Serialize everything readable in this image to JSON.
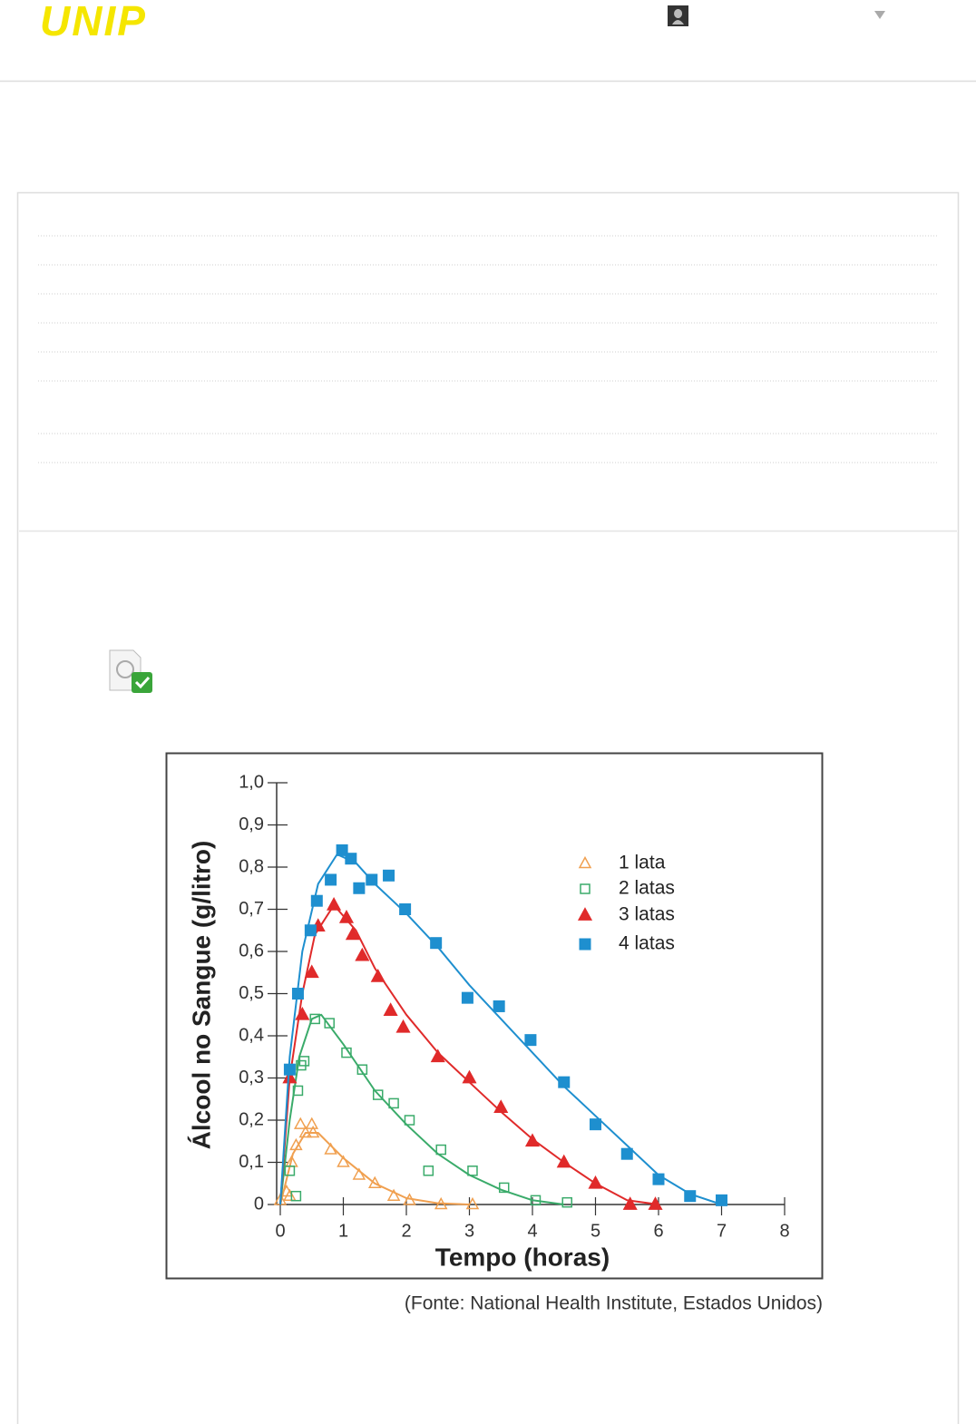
{
  "header": {
    "logo": "UNIP"
  },
  "chart_data": {
    "type": "scatter",
    "x_label": "Tempo (horas)",
    "y_label": "Álcool no Sangue (g/litro)",
    "source": "(Fonte: National Health Institute, Estados Unidos)",
    "xlim": [
      0,
      8
    ],
    "ylim": [
      0,
      1.0
    ],
    "xticks": [
      0,
      1,
      2,
      3,
      4,
      5,
      6,
      7,
      8
    ],
    "yticks": [
      0,
      {
        "value": 0.1,
        "label": "0,1"
      },
      {
        "value": 0.2,
        "label": "0,2"
      },
      {
        "value": 0.3,
        "label": "0,3"
      },
      {
        "value": 0.4,
        "label": "0,4"
      },
      {
        "value": 0.5,
        "label": "0,5"
      },
      {
        "value": 0.6,
        "label": "0,6"
      },
      {
        "value": 0.7,
        "label": "0,7"
      },
      {
        "value": 0.8,
        "label": "0,8"
      },
      {
        "value": 0.9,
        "label": "0,9"
      },
      {
        "value": 1.0,
        "label": "1,0"
      }
    ],
    "legend": "upper right",
    "series": [
      {
        "name": "1 lata",
        "color": "#f0a050",
        "marker": "triangle",
        "filled": false,
        "x": [
          0.0,
          0.1,
          0.15,
          0.18,
          0.25,
          0.32,
          0.4,
          0.5,
          0.52,
          0.8,
          1.0,
          1.25,
          1.5,
          1.8,
          2.05,
          2.55,
          3.05
        ],
        "values": [
          0.01,
          0.03,
          0.02,
          0.1,
          0.14,
          0.19,
          0.17,
          0.19,
          0.17,
          0.13,
          0.1,
          0.07,
          0.05,
          0.02,
          0.01,
          0.0,
          0.0
        ],
        "fit_x": [
          0,
          0.2,
          0.4,
          0.6,
          1.0,
          1.5,
          2.0,
          2.5,
          3.0
        ],
        "fit_values": [
          0,
          0.12,
          0.17,
          0.17,
          0.11,
          0.05,
          0.015,
          0.003,
          0
        ]
      },
      {
        "name": "2 latas",
        "color": "#3aab6a",
        "marker": "square",
        "filled": false,
        "x": [
          0.15,
          0.25,
          0.28,
          0.33,
          0.38,
          0.55,
          0.78,
          1.05,
          1.3,
          1.55,
          1.8,
          2.05,
          2.35,
          2.55,
          3.05,
          3.55,
          4.05,
          4.55
        ],
        "values": [
          0.08,
          0.02,
          0.27,
          0.33,
          0.34,
          0.44,
          0.43,
          0.36,
          0.32,
          0.26,
          0.24,
          0.2,
          0.08,
          0.13,
          0.08,
          0.04,
          0.01,
          0.005
        ],
        "fit_x": [
          0,
          0.15,
          0.3,
          0.5,
          0.65,
          1.0,
          1.5,
          2.0,
          2.5,
          3.0,
          3.5,
          4.0,
          4.5
        ],
        "fit_values": [
          0,
          0.2,
          0.35,
          0.44,
          0.45,
          0.38,
          0.27,
          0.19,
          0.12,
          0.07,
          0.035,
          0.01,
          0
        ]
      },
      {
        "name": "3 latas",
        "color": "#e02a2a",
        "marker": "triangle",
        "filled": true,
        "x": [
          0.15,
          0.35,
          0.5,
          0.6,
          0.85,
          1.05,
          1.15,
          1.3,
          1.55,
          1.75,
          1.95,
          2.5,
          3.0,
          3.5,
          4.0,
          4.5,
          5.0,
          5.55,
          5.95
        ],
        "values": [
          0.3,
          0.45,
          0.55,
          0.66,
          0.71,
          0.68,
          0.64,
          0.59,
          0.54,
          0.46,
          0.42,
          0.35,
          0.3,
          0.23,
          0.15,
          0.1,
          0.05,
          0.0,
          0.0
        ],
        "fit_x": [
          0,
          0.15,
          0.35,
          0.55,
          0.85,
          1.2,
          1.5,
          2.0,
          2.5,
          3.0,
          3.5,
          4.0,
          4.5,
          5.0,
          5.5,
          6.0
        ],
        "fit_values": [
          0,
          0.3,
          0.5,
          0.64,
          0.71,
          0.65,
          0.56,
          0.45,
          0.36,
          0.29,
          0.22,
          0.155,
          0.1,
          0.05,
          0.01,
          0
        ]
      },
      {
        "name": "4 latas",
        "color": "#1e8fcf",
        "marker": "square",
        "filled": true,
        "x": [
          0.15,
          0.28,
          0.48,
          0.58,
          0.8,
          0.98,
          1.12,
          1.25,
          1.45,
          1.72,
          1.98,
          2.47,
          2.97,
          3.47,
          3.97,
          4.5,
          5.0,
          5.5,
          6.0,
          6.5,
          7.0
        ],
        "values": [
          0.32,
          0.5,
          0.65,
          0.72,
          0.77,
          0.84,
          0.82,
          0.75,
          0.77,
          0.78,
          0.7,
          0.62,
          0.49,
          0.47,
          0.39,
          0.29,
          0.19,
          0.12,
          0.06,
          0.02,
          0.01
        ],
        "fit_x": [
          0,
          0.15,
          0.35,
          0.6,
          0.9,
          1.2,
          1.5,
          2.0,
          2.5,
          3.0,
          3.5,
          4.0,
          4.5,
          5.0,
          5.5,
          6.0,
          6.5,
          7.0
        ],
        "fit_values": [
          0,
          0.35,
          0.6,
          0.76,
          0.83,
          0.81,
          0.76,
          0.69,
          0.61,
          0.52,
          0.44,
          0.36,
          0.28,
          0.21,
          0.14,
          0.07,
          0.025,
          0
        ]
      }
    ]
  }
}
